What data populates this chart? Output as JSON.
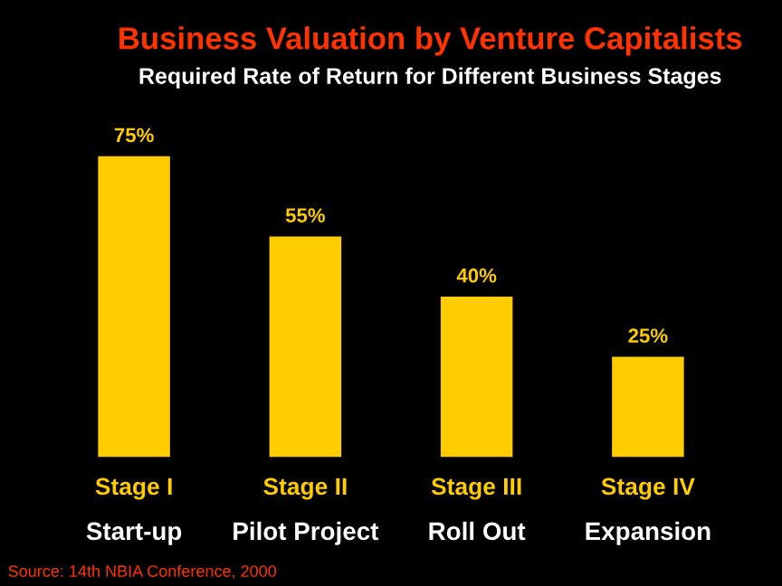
{
  "chart_data": {
    "type": "bar",
    "title": "Business Valuation by Venture Capitalists",
    "subtitle": "Required Rate of Return for Different Business Stages",
    "categories": [
      "Stage I\nStart-up",
      "Stage II\nPilot Project",
      "Stage III\nRoll Out",
      "Stage IV\nExpansion"
    ],
    "values": [
      75,
      55,
      40,
      25
    ],
    "color": "#ffcc00",
    "value_labels": [
      "75%",
      "55%",
      "40%",
      "25%"
    ],
    "annotations": [
      "Source: 14th NBIA Conference, 2000"
    ],
    "legend": false
  }
}
